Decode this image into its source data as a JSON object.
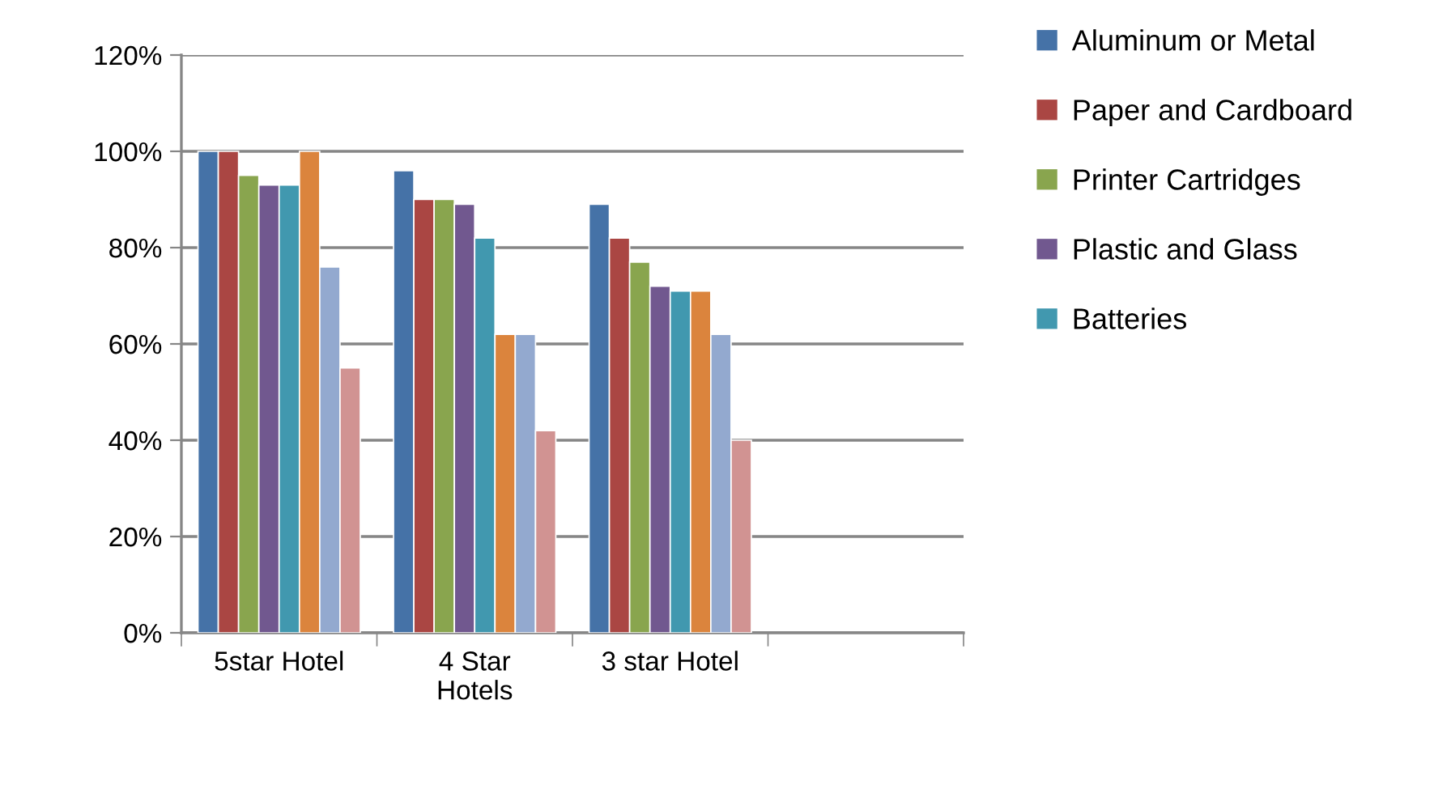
{
  "chart_data": {
    "type": "bar",
    "categories": [
      "5star Hotel",
      "4 Star\nHotels",
      "3 star Hotel",
      null
    ],
    "series": [
      {
        "name": "Aluminum or Metal",
        "color": "#4572a7",
        "values": [
          100,
          96,
          89,
          null
        ]
      },
      {
        "name": "Paper and Cardboard",
        "color": "#aa4643",
        "values": [
          100,
          90,
          82,
          null
        ]
      },
      {
        "name": "Printer Cartridges",
        "color": "#89a54e",
        "values": [
          95,
          90,
          77,
          null
        ]
      },
      {
        "name": "Plastic and Glass",
        "color": "#71588f",
        "values": [
          93,
          89,
          72,
          null
        ]
      },
      {
        "name": "Batteries",
        "color": "#4198af",
        "values": [
          93,
          82,
          71,
          null
        ]
      },
      {
        "color": "#db843d",
        "values": [
          100,
          62,
          71,
          null
        ]
      },
      {
        "color": "#93a9cf",
        "values": [
          76,
          62,
          62,
          null
        ]
      },
      {
        "color": "#d19392",
        "values": [
          55,
          42,
          40,
          null
        ]
      }
    ],
    "ylim": [
      0,
      120
    ],
    "yticks": [
      {
        "value": 0,
        "label": "0%"
      },
      {
        "value": 20,
        "label": "20%"
      },
      {
        "value": 40,
        "label": "40%"
      },
      {
        "value": 60,
        "label": "60%"
      },
      {
        "value": 80,
        "label": "80%"
      },
      {
        "value": 100,
        "label": "100%"
      },
      {
        "value": 120,
        "label": "120%"
      }
    ],
    "grid": "y",
    "legend": "right"
  }
}
